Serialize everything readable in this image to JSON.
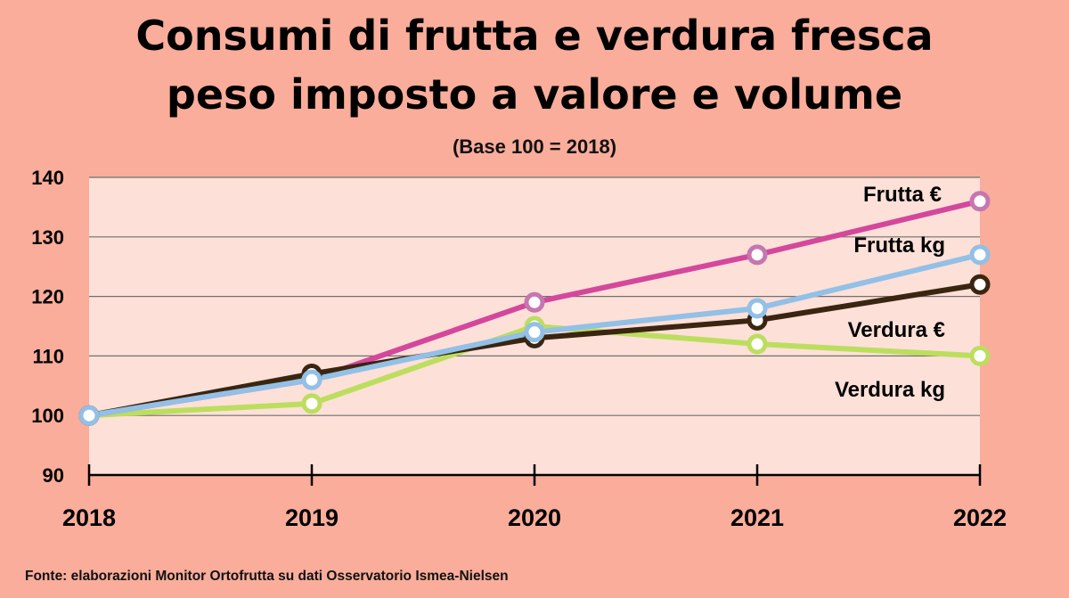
{
  "title_line1": "Consumi di frutta e verdura fresca",
  "title_line2": "peso imposto a valore e volume",
  "subtitle": "(Base 100 = 2018)",
  "source": "Fonte: elaborazioni Monitor Ortofrutta su dati Osservatorio Ismea-Nielsen",
  "chart_data": {
    "type": "line",
    "categories": [
      "2018",
      "2019",
      "2020",
      "2021",
      "2022"
    ],
    "ylim": [
      90,
      140
    ],
    "yticks": [
      90,
      100,
      110,
      120,
      130,
      140
    ],
    "grid": true,
    "plot_background": "#fde0d8",
    "series": [
      {
        "name": "Frutta €",
        "color": "#d4479c",
        "marker_color": "#c676b0",
        "values": [
          100,
          106,
          119,
          127,
          136
        ]
      },
      {
        "name": "Frutta kg",
        "color": "#92c0e6",
        "marker_color": "#92c0e6",
        "values": [
          100,
          106,
          114,
          118,
          127
        ]
      },
      {
        "name": "Verdura €",
        "color": "#3a2510",
        "marker_color": "#3a2510",
        "values": [
          100,
          107,
          113,
          116,
          122
        ]
      },
      {
        "name": "Verdura kg",
        "color": "#bcde5e",
        "marker_color": "#bcde5e",
        "values": [
          100,
          102,
          115,
          112,
          110
        ]
      }
    ]
  }
}
